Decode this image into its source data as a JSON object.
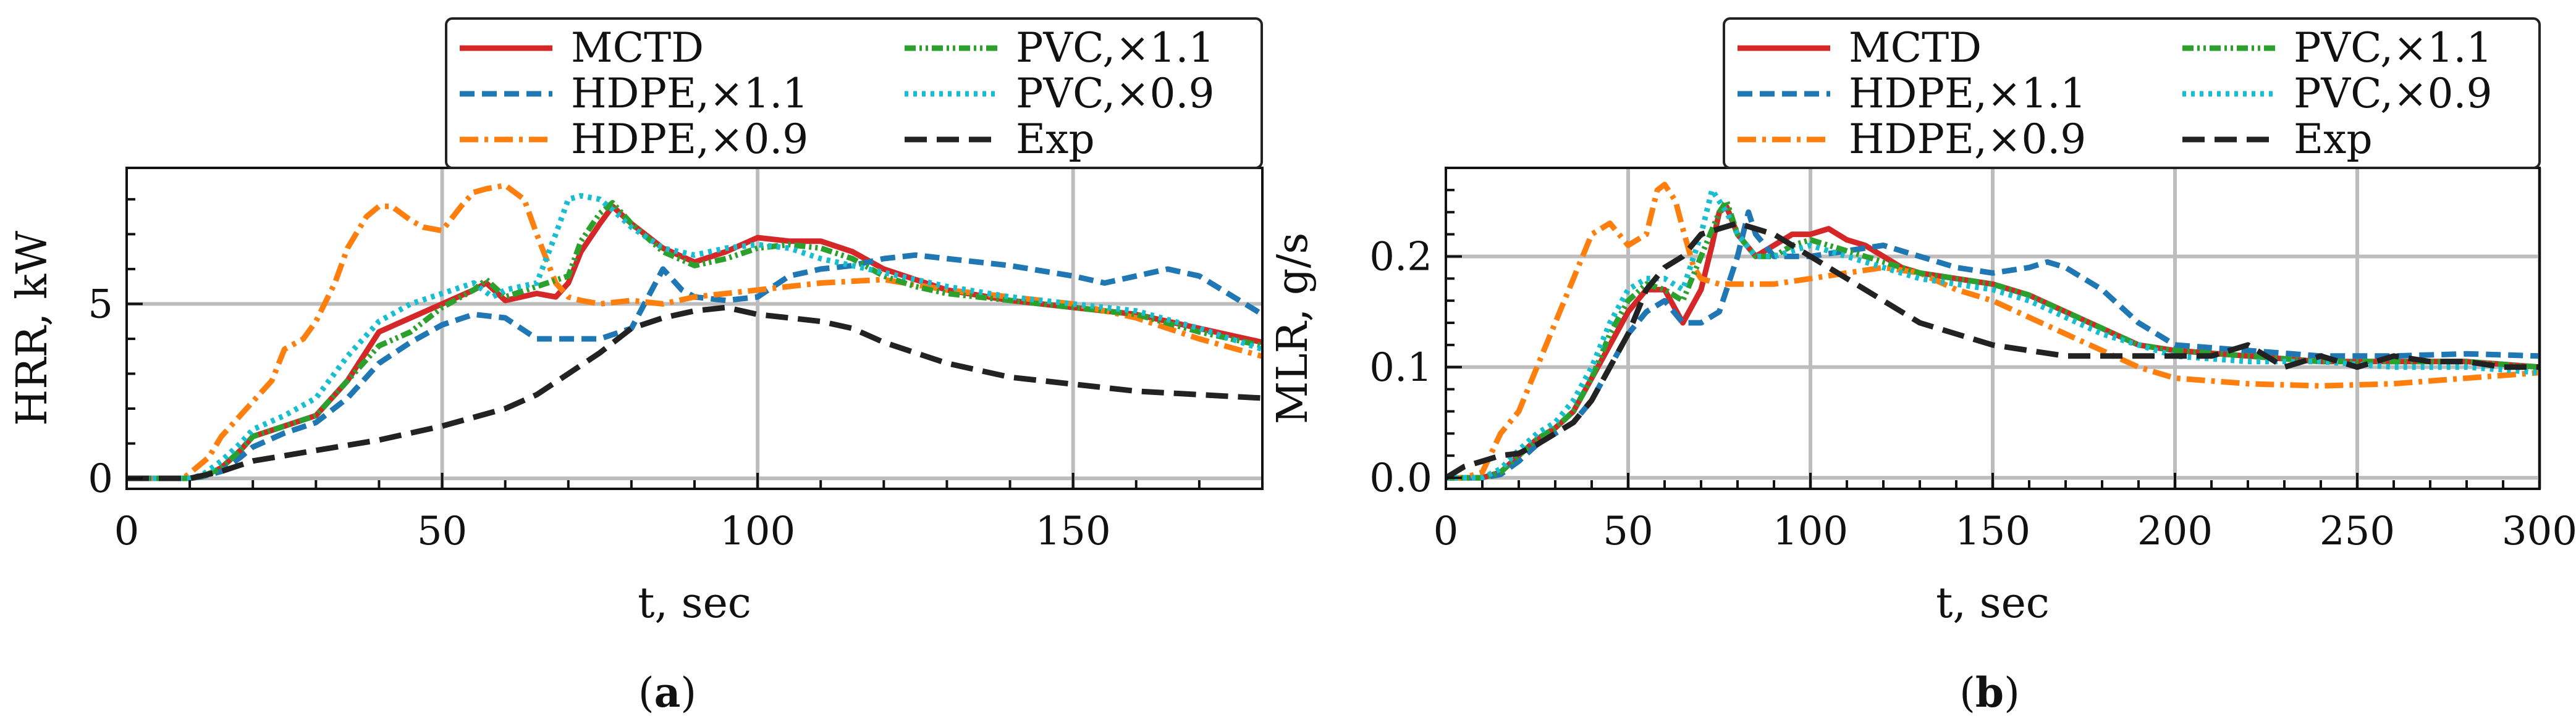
{
  "chart_data": [
    {
      "type": "line",
      "caption": "a",
      "xlabel": "t, sec",
      "ylabel": "HRR, kW",
      "xlim": [
        0,
        180
      ],
      "ylim": [
        -0.3,
        8.9
      ],
      "xticks": [
        0,
        50,
        100,
        150
      ],
      "yticks": [
        0,
        5
      ],
      "grid": true,
      "legend_position": "top-right",
      "series": [
        {
          "name": "MCTD",
          "color": "#d62728",
          "dash": "solid",
          "x": [
            0,
            10,
            12,
            15,
            18,
            20,
            25,
            30,
            35,
            40,
            45,
            50,
            55,
            57,
            60,
            65,
            68,
            70,
            72,
            75,
            77,
            80,
            85,
            90,
            95,
            100,
            105,
            110,
            115,
            120,
            125,
            130,
            140,
            150,
            160,
            170,
            180
          ],
          "y": [
            0,
            0,
            0.05,
            0.3,
            0.8,
            1.2,
            1.5,
            1.8,
            2.8,
            4.2,
            4.6,
            5.0,
            5.4,
            5.6,
            5.1,
            5.3,
            5.2,
            5.6,
            6.5,
            7.3,
            7.8,
            7.3,
            6.6,
            6.2,
            6.5,
            6.9,
            6.8,
            6.8,
            6.5,
            6.0,
            5.7,
            5.4,
            5.1,
            4.9,
            4.7,
            4.3,
            3.9
          ]
        },
        {
          "name": "HDPE,×1.1",
          "color": "#1f77b4",
          "dash": "24,12",
          "x": [
            0,
            10,
            12,
            15,
            18,
            20,
            25,
            30,
            35,
            40,
            45,
            50,
            55,
            60,
            65,
            70,
            75,
            80,
            85,
            88,
            90,
            95,
            100,
            105,
            110,
            115,
            120,
            125,
            130,
            140,
            150,
            155,
            160,
            165,
            170,
            180
          ],
          "y": [
            0,
            0,
            0.05,
            0.2,
            0.6,
            0.9,
            1.3,
            1.6,
            2.3,
            3.3,
            3.9,
            4.4,
            4.7,
            4.6,
            4.0,
            4.0,
            4.0,
            4.3,
            6.0,
            5.4,
            5.2,
            5.1,
            5.2,
            5.8,
            6.0,
            6.1,
            6.3,
            6.4,
            6.3,
            6.1,
            5.8,
            5.6,
            5.8,
            6.0,
            5.8,
            4.7
          ]
        },
        {
          "name": "HDPE,×0.9",
          "color": "#ff7f0e",
          "dash": "30,10,6,10",
          "x": [
            0,
            9,
            11,
            13,
            15,
            18,
            20,
            23,
            25,
            28,
            30,
            33,
            35,
            38,
            40,
            42,
            45,
            47,
            50,
            53,
            55,
            57,
            60,
            63,
            65,
            68,
            70,
            72,
            75,
            80,
            85,
            90,
            95,
            100,
            110,
            120,
            130,
            140,
            150,
            160,
            170,
            180
          ],
          "y": [
            0,
            0,
            0.3,
            0.6,
            1.2,
            1.8,
            2.2,
            2.8,
            3.7,
            4.0,
            4.5,
            5.6,
            6.6,
            7.5,
            7.8,
            7.8,
            7.4,
            7.2,
            7.1,
            7.8,
            8.2,
            8.3,
            8.4,
            8.0,
            7.0,
            5.6,
            5.2,
            5.1,
            5.0,
            5.1,
            5.0,
            5.2,
            5.3,
            5.4,
            5.6,
            5.7,
            5.4,
            5.2,
            5.0,
            4.6,
            4.0,
            3.5
          ]
        },
        {
          "name": "PVC,×1.1",
          "color": "#2ca02c",
          "dash": "18,6,4,6,4,6",
          "x": [
            0,
            10,
            12,
            15,
            18,
            20,
            25,
            30,
            35,
            40,
            45,
            50,
            55,
            57,
            60,
            65,
            70,
            72,
            75,
            77,
            80,
            85,
            90,
            95,
            100,
            105,
            110,
            115,
            120,
            125,
            130,
            140,
            150,
            160,
            170,
            180
          ],
          "y": [
            0,
            0,
            0.05,
            0.3,
            0.8,
            1.2,
            1.5,
            1.8,
            2.8,
            3.8,
            4.2,
            4.9,
            5.4,
            5.7,
            5.2,
            5.5,
            5.8,
            6.8,
            7.6,
            7.9,
            7.3,
            6.5,
            6.1,
            6.3,
            6.6,
            6.7,
            6.6,
            6.3,
            5.8,
            5.5,
            5.3,
            5.1,
            4.9,
            4.7,
            4.2,
            3.8
          ]
        },
        {
          "name": "PVC,×0.9",
          "color": "#17becf",
          "dash": "6,8",
          "x": [
            0,
            10,
            12,
            15,
            18,
            20,
            25,
            30,
            35,
            40,
            45,
            50,
            55,
            58,
            60,
            65,
            68,
            70,
            72,
            75,
            77,
            80,
            85,
            90,
            95,
            100,
            105,
            110,
            120,
            130,
            140,
            150,
            160,
            170,
            180
          ],
          "y": [
            0,
            0,
            0.1,
            0.5,
            1.0,
            1.4,
            1.8,
            2.3,
            3.5,
            4.5,
            5.0,
            5.3,
            5.6,
            5.2,
            5.4,
            5.6,
            7.0,
            8.0,
            8.1,
            8.0,
            7.7,
            7.2,
            6.6,
            6.4,
            6.6,
            6.7,
            6.6,
            6.3,
            5.9,
            5.5,
            5.2,
            5.0,
            4.8,
            4.3,
            3.7
          ]
        },
        {
          "name": "Exp",
          "color": "#222222",
          "dash": "36,16",
          "x": [
            0,
            10,
            15,
            20,
            30,
            40,
            50,
            60,
            65,
            70,
            75,
            80,
            85,
            90,
            95,
            100,
            105,
            110,
            115,
            120,
            130,
            140,
            150,
            160,
            170,
            180
          ],
          "y": [
            0,
            0,
            0.2,
            0.5,
            0.8,
            1.1,
            1.5,
            2.0,
            2.4,
            3.0,
            3.6,
            4.3,
            4.6,
            4.8,
            4.9,
            4.7,
            4.6,
            4.5,
            4.3,
            3.9,
            3.3,
            2.9,
            2.7,
            2.5,
            2.4,
            2.3
          ]
        }
      ]
    },
    {
      "type": "line",
      "caption": "b",
      "xlabel": "t, sec",
      "ylabel": "MLR, g/s",
      "xlim": [
        0,
        300
      ],
      "ylim": [
        -0.01,
        0.28
      ],
      "xticks": [
        0,
        50,
        100,
        150,
        200,
        250,
        300
      ],
      "yticks": [
        0.0,
        0.1,
        0.2
      ],
      "ytick_labels": [
        "0.0",
        "0.1",
        "0.2"
      ],
      "grid": true,
      "legend_position": "top-right",
      "series": [
        {
          "name": "MCTD",
          "color": "#d62728",
          "dash": "solid",
          "x": [
            0,
            10,
            15,
            20,
            25,
            30,
            35,
            40,
            45,
            50,
            55,
            60,
            65,
            70,
            73,
            75,
            77,
            80,
            85,
            90,
            95,
            100,
            105,
            110,
            115,
            120,
            125,
            130,
            140,
            150,
            160,
            170,
            180,
            190,
            200,
            220,
            240,
            260,
            280,
            300
          ],
          "y": [
            0,
            0,
            0.005,
            0.02,
            0.035,
            0.045,
            0.06,
            0.09,
            0.12,
            0.15,
            0.17,
            0.17,
            0.14,
            0.17,
            0.21,
            0.24,
            0.245,
            0.22,
            0.2,
            0.21,
            0.22,
            0.22,
            0.225,
            0.215,
            0.21,
            0.2,
            0.19,
            0.185,
            0.18,
            0.175,
            0.165,
            0.15,
            0.135,
            0.12,
            0.115,
            0.11,
            0.105,
            0.105,
            0.105,
            0.1
          ]
        },
        {
          "name": "HDPE,×1.1",
          "color": "#1f77b4",
          "dash": "24,12",
          "x": [
            0,
            10,
            15,
            20,
            25,
            30,
            35,
            40,
            45,
            50,
            55,
            60,
            65,
            70,
            75,
            80,
            83,
            85,
            90,
            95,
            100,
            110,
            120,
            130,
            140,
            150,
            160,
            165,
            170,
            180,
            190,
            200,
            220,
            240,
            260,
            280,
            300
          ],
          "y": [
            0,
            0,
            0.003,
            0.015,
            0.03,
            0.04,
            0.05,
            0.07,
            0.1,
            0.13,
            0.15,
            0.16,
            0.14,
            0.14,
            0.15,
            0.2,
            0.24,
            0.22,
            0.2,
            0.2,
            0.2,
            0.205,
            0.21,
            0.2,
            0.19,
            0.185,
            0.19,
            0.195,
            0.19,
            0.17,
            0.14,
            0.12,
            0.115,
            0.11,
            0.11,
            0.112,
            0.11
          ]
        },
        {
          "name": "HDPE,×0.9",
          "color": "#ff7f0e",
          "dash": "30,10,6,10",
          "x": [
            0,
            5,
            10,
            15,
            20,
            25,
            30,
            35,
            40,
            45,
            50,
            55,
            58,
            60,
            63,
            65,
            68,
            70,
            75,
            80,
            90,
            100,
            110,
            120,
            130,
            140,
            150,
            160,
            170,
            180,
            190,
            200,
            220,
            240,
            260,
            280,
            300
          ],
          "y": [
            0,
            0,
            0.005,
            0.04,
            0.06,
            0.1,
            0.14,
            0.18,
            0.22,
            0.23,
            0.21,
            0.22,
            0.26,
            0.265,
            0.25,
            0.225,
            0.19,
            0.18,
            0.175,
            0.175,
            0.175,
            0.18,
            0.185,
            0.19,
            0.185,
            0.17,
            0.16,
            0.145,
            0.13,
            0.115,
            0.1,
            0.09,
            0.085,
            0.083,
            0.085,
            0.09,
            0.095
          ]
        },
        {
          "name": "PVC,×1.1",
          "color": "#2ca02c",
          "dash": "18,6,4,6,4,6",
          "x": [
            0,
            10,
            15,
            20,
            25,
            30,
            35,
            40,
            45,
            50,
            55,
            60,
            65,
            70,
            75,
            77,
            80,
            85,
            90,
            95,
            100,
            110,
            120,
            130,
            140,
            150,
            160,
            170,
            180,
            190,
            200,
            220,
            240,
            260,
            280,
            300
          ],
          "y": [
            0,
            0,
            0.005,
            0.02,
            0.035,
            0.045,
            0.06,
            0.09,
            0.13,
            0.16,
            0.175,
            0.17,
            0.16,
            0.2,
            0.24,
            0.25,
            0.22,
            0.2,
            0.2,
            0.21,
            0.215,
            0.205,
            0.195,
            0.185,
            0.18,
            0.175,
            0.165,
            0.15,
            0.135,
            0.12,
            0.115,
            0.11,
            0.105,
            0.105,
            0.105,
            0.1
          ]
        },
        {
          "name": "PVC,×0.9",
          "color": "#17becf",
          "dash": "6,8",
          "x": [
            0,
            10,
            15,
            20,
            25,
            30,
            35,
            40,
            45,
            50,
            55,
            60,
            65,
            70,
            73,
            75,
            77,
            80,
            85,
            90,
            95,
            100,
            110,
            120,
            130,
            140,
            150,
            160,
            170,
            180,
            190,
            200,
            220,
            240,
            260,
            280,
            300
          ],
          "y": [
            0,
            0,
            0.008,
            0.025,
            0.04,
            0.05,
            0.07,
            0.1,
            0.14,
            0.17,
            0.18,
            0.18,
            0.17,
            0.22,
            0.26,
            0.25,
            0.24,
            0.22,
            0.2,
            0.2,
            0.205,
            0.21,
            0.2,
            0.19,
            0.18,
            0.175,
            0.17,
            0.16,
            0.145,
            0.13,
            0.12,
            0.11,
            0.105,
            0.105,
            0.1,
            0.1,
            0.095
          ]
        },
        {
          "name": "Exp",
          "color": "#222222",
          "dash": "36,16",
          "x": [
            0,
            5,
            10,
            15,
            20,
            25,
            30,
            35,
            40,
            45,
            50,
            55,
            60,
            65,
            70,
            75,
            80,
            85,
            90,
            95,
            100,
            105,
            110,
            120,
            130,
            140,
            150,
            160,
            170,
            180,
            190,
            200,
            210,
            220,
            225,
            230,
            240,
            250,
            260,
            270,
            280,
            290,
            300
          ],
          "y": [
            0,
            0.01,
            0.015,
            0.02,
            0.022,
            0.03,
            0.04,
            0.05,
            0.07,
            0.1,
            0.13,
            0.17,
            0.19,
            0.2,
            0.22,
            0.225,
            0.23,
            0.225,
            0.22,
            0.21,
            0.2,
            0.19,
            0.18,
            0.16,
            0.14,
            0.13,
            0.12,
            0.115,
            0.11,
            0.11,
            0.11,
            0.11,
            0.11,
            0.12,
            0.11,
            0.1,
            0.11,
            0.1,
            0.11,
            0.105,
            0.105,
            0.1,
            0.1
          ]
        }
      ]
    }
  ]
}
